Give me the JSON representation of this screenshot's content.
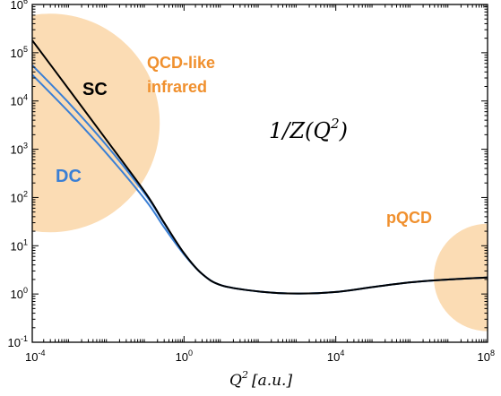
{
  "chart_data": {
    "type": "line",
    "title": "",
    "xlabel": {
      "base": "Q",
      "sup": "2",
      "unit": "[a.u.]"
    },
    "ylabel": "",
    "xscale": "log",
    "yscale": "log",
    "xlim": [
      0.0001,
      100000000
    ],
    "ylim": [
      0.1,
      1000000
    ],
    "grid": false,
    "x_ticks": [
      {
        "base": "10",
        "exp": "-4",
        "value": 0.0001
      },
      {
        "base": "10",
        "exp": "0",
        "value": 1
      },
      {
        "base": "10",
        "exp": "4",
        "value": 10000
      },
      {
        "base": "10",
        "exp": "8",
        "value": 100000000
      }
    ],
    "y_ticks": [
      {
        "base": "10",
        "exp": "-1",
        "value": 0.1
      },
      {
        "base": "10",
        "exp": "0",
        "value": 1
      },
      {
        "base": "10",
        "exp": "1",
        "value": 10
      },
      {
        "base": "10",
        "exp": "2",
        "value": 100
      },
      {
        "base": "10",
        "exp": "3",
        "value": 1000
      },
      {
        "base": "10",
        "exp": "4",
        "value": 10000
      },
      {
        "base": "10",
        "exp": "5",
        "value": 100000
      },
      {
        "base": "10",
        "exp": "6",
        "value": 1000000
      }
    ],
    "series": [
      {
        "name": "SC",
        "color": "#000000",
        "x": [
          0.0001,
          0.001,
          0.01,
          0.1,
          0.3,
          1,
          3,
          10,
          100,
          1000,
          10000,
          100000,
          1000000,
          10000000,
          100000000
        ],
        "y": [
          180000,
          16000,
          1400,
          120,
          30,
          7,
          2.6,
          1.5,
          1.12,
          1.02,
          1.1,
          1.4,
          1.75,
          2.0,
          2.2
        ]
      },
      {
        "name": "DC",
        "color": "#3a7fd5",
        "x": [
          0.0001,
          0.001,
          0.01,
          0.1,
          0.3,
          1,
          3,
          10,
          100,
          1000,
          10000,
          100000,
          1000000,
          10000000,
          100000000
        ],
        "y": [
          55000,
          8500,
          1100,
          110,
          29,
          7,
          2.6,
          1.5,
          1.12,
          1.02,
          1.1,
          1.4,
          1.75,
          2.0,
          2.2
        ]
      },
      {
        "name": "",
        "color": "#3a7fd5",
        "x": [
          0.0001,
          0.001,
          0.01,
          0.1,
          0.3,
          1,
          3,
          10,
          100,
          1000,
          10000,
          100000,
          1000000,
          10000000,
          100000000
        ],
        "y": [
          35000,
          5500,
          750,
          85,
          24,
          6.6,
          2.6,
          1.5,
          1.12,
          1.02,
          1.1,
          1.4,
          1.75,
          2.0,
          2.2
        ]
      }
    ],
    "regions": [
      {
        "label": "QCD-like infrared",
        "center": [
          0.0003,
          3500
        ],
        "color": "#fbdcb4"
      },
      {
        "label": "pQCD",
        "center": [
          100000000,
          2.2
        ],
        "color": "#fbdcb4"
      }
    ],
    "annotations": [
      {
        "id": "sc",
        "text": "SC",
        "color": "#000000"
      },
      {
        "id": "qcd-line1",
        "text": "QCD-like",
        "color": "#f0902e"
      },
      {
        "id": "qcd-line2",
        "text": "infrared",
        "color": "#f0902e"
      },
      {
        "id": "formula",
        "pre": "1/Z(Q",
        "sup": "2",
        "post": ")",
        "color": "#000000"
      },
      {
        "id": "dc",
        "text": "DC",
        "color": "#3a7fd5"
      },
      {
        "id": "pqcd",
        "text": "pQCD",
        "color": "#f0902e"
      }
    ]
  }
}
